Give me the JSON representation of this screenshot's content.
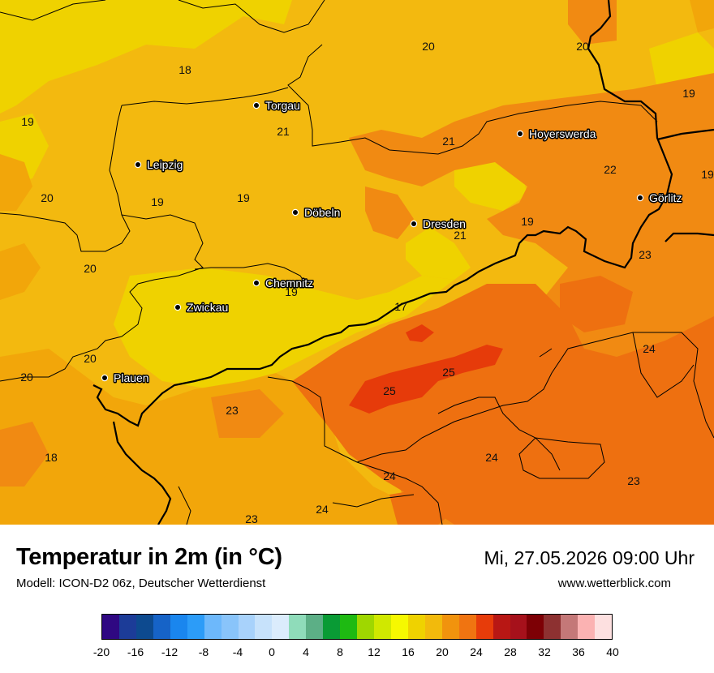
{
  "title": "Temperatur in 2m (in °C)",
  "subtitle": "Modell: ICON-D2 06z, Deutscher Wetterdienst",
  "datetime": "Mi, 27.05.2026 09:00 Uhr",
  "website": "www.wetterblick.com",
  "map": {
    "cities": [
      {
        "name": "Torgau"
      },
      {
        "name": "Hoyerswerda"
      },
      {
        "name": "Leipzig"
      },
      {
        "name": "Döbeln"
      },
      {
        "name": "Dresden"
      },
      {
        "name": "Görlitz"
      },
      {
        "name": "Chemnitz"
      },
      {
        "name": "Zwickau"
      },
      {
        "name": "Plauen"
      }
    ],
    "temperature_labels": [
      "20",
      "20",
      "18",
      "19",
      "19",
      "21",
      "21",
      "22",
      "19",
      "20",
      "19",
      "19",
      "21",
      "20",
      "19",
      "23",
      "19",
      "17",
      "24",
      "20",
      "25",
      "20",
      "25",
      "23",
      "18",
      "24",
      "24",
      "23",
      "23",
      "24"
    ],
    "colors": {
      "t16": "#efd200",
      "t18": "#f3b90f",
      "t20": "#f2a60a",
      "t22": "#f18a12",
      "t24": "#ee7010",
      "t26": "#e63b0a",
      "border": "#000000"
    }
  },
  "legend": {
    "ticks": [
      "-20",
      "-16",
      "-12",
      "-8",
      "-4",
      "0",
      "4",
      "8",
      "12",
      "16",
      "20",
      "24",
      "28",
      "32",
      "36",
      "40"
    ],
    "colors": [
      "#2f0882",
      "#1c3c98",
      "#0d4a8f",
      "#1663c7",
      "#1a86ee",
      "#2c9cf8",
      "#6db8fb",
      "#89c4fa",
      "#a8d2fb",
      "#c7e2fb",
      "#dbecfc",
      "#8fdcba",
      "#5caf86",
      "#099b35",
      "#1eba12",
      "#9fd700",
      "#d0e800",
      "#f6f800",
      "#efd200",
      "#f2ba0c",
      "#f1930d",
      "#f07411",
      "#e73c0a",
      "#b81714",
      "#a6111b",
      "#7d0005",
      "#8d3131",
      "#c47878",
      "#fbb2b2",
      "#fde0e0"
    ]
  }
}
